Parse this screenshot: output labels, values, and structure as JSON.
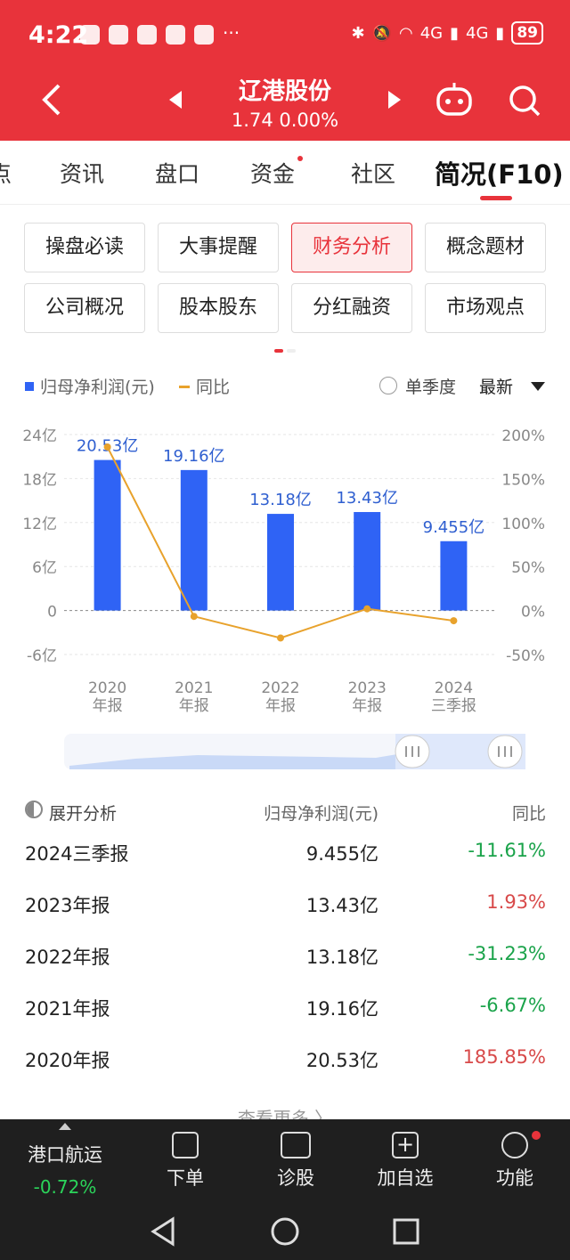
{
  "status": {
    "time": "4:22",
    "battery": "89",
    "net1": "4G",
    "net2": "4G"
  },
  "nav": {
    "stock_name": "辽港股份",
    "stock_price": "1.74 0.00%"
  },
  "tabs": [
    "点",
    "资讯",
    "盘口",
    "资金",
    "社区",
    "简况(F10)"
  ],
  "buttons": [
    [
      "操盘必读",
      "大事提醒",
      "财务分析",
      "概念题材"
    ],
    [
      "公司概况",
      "股本股东",
      "分红融资",
      "市场观点"
    ]
  ],
  "legend": {
    "series1": "归母净利润(元)",
    "series2": "同比",
    "quarter_toggle": "单季度",
    "sort": "最新"
  },
  "chart_data": {
    "type": "bar",
    "categories": [
      "2020 年报",
      "2021 年报",
      "2022 年报",
      "2023 年报",
      "2024 三季报"
    ],
    "category_lines": [
      [
        "2020",
        "年报"
      ],
      [
        "2021",
        "年报"
      ],
      [
        "2022",
        "年报"
      ],
      [
        "2023",
        "年报"
      ],
      [
        "2024",
        "三季报"
      ]
    ],
    "series": [
      {
        "name": "归母净利润(元)",
        "type": "bar",
        "values": [
          20.53,
          19.16,
          13.18,
          13.43,
          9.455
        ],
        "labels": [
          "20.53亿",
          "19.16亿",
          "13.18亿",
          "13.43亿",
          "9.455亿"
        ],
        "color": "#2f63f5"
      },
      {
        "name": "同比",
        "type": "line",
        "axis": "right",
        "values": [
          185.85,
          -6.67,
          -31.23,
          1.93,
          -11.61
        ],
        "color": "#e8a22c"
      }
    ],
    "left_ticks": [
      "24亿",
      "18亿",
      "12亿",
      "6亿",
      "0",
      "-6亿"
    ],
    "right_ticks": [
      "200%",
      "150%",
      "100%",
      "50%",
      "0%",
      "-50%"
    ],
    "ylim": [
      -6,
      24
    ],
    "y2lim": [
      -50,
      200
    ]
  },
  "analysis": {
    "title": "展开分析",
    "col2": "归母净利润(元)",
    "col3": "同比",
    "rows": [
      {
        "period": "2024三季报",
        "value": "9.455亿",
        "yoy": "-11.61%",
        "dir": "neg"
      },
      {
        "period": "2023年报",
        "value": "13.43亿",
        "yoy": "1.93%",
        "dir": "pos"
      },
      {
        "period": "2022年报",
        "value": "13.18亿",
        "yoy": "-31.23%",
        "dir": "neg"
      },
      {
        "period": "2021年报",
        "value": "19.16亿",
        "yoy": "-6.67%",
        "dir": "neg"
      },
      {
        "period": "2020年报",
        "value": "20.53亿",
        "yoy": "185.85%",
        "dir": "pos"
      }
    ],
    "more": "查看更多 〉"
  },
  "bottom": {
    "sector": "港口航运",
    "sector_change": "-0.72%",
    "order": "下单",
    "diagnose": "诊股",
    "add_watch": "加自选",
    "functions": "功能"
  },
  "colors": {
    "brand": "#e8333b",
    "bar": "#2f63f5",
    "line": "#e8a22c",
    "up": "#d84a4a",
    "down": "#1aa34a",
    "bottom_bg": "#1f1f1f"
  }
}
